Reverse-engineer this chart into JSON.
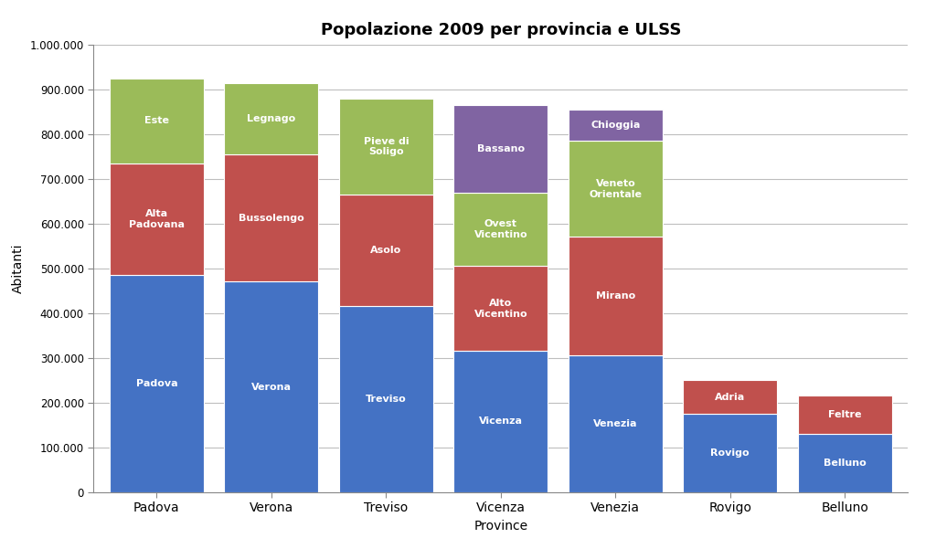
{
  "title": "Popolazione 2009 per provincia e ULSS",
  "xlabel": "Province",
  "ylabel": "Abitanti",
  "provinces": [
    "Padova",
    "Verona",
    "Treviso",
    "Vicenza",
    "Venezia",
    "Rovigo",
    "Belluno"
  ],
  "segments": [
    {
      "province": "Padova",
      "bars": [
        {
          "label": "Padova",
          "value": 485000,
          "color": "#4472C4"
        },
        {
          "label": "Alta\nPadovana",
          "value": 250000,
          "color": "#C0504D"
        },
        {
          "label": "Este",
          "value": 190000,
          "color": "#9BBB59"
        }
      ]
    },
    {
      "province": "Verona",
      "bars": [
        {
          "label": "Verona",
          "value": 470000,
          "color": "#4472C4"
        },
        {
          "label": "Bussolengo",
          "value": 285000,
          "color": "#C0504D"
        },
        {
          "label": "Legnago",
          "value": 160000,
          "color": "#9BBB59"
        }
      ]
    },
    {
      "province": "Treviso",
      "bars": [
        {
          "label": "Treviso",
          "value": 415000,
          "color": "#4472C4"
        },
        {
          "label": "Asolo",
          "value": 250000,
          "color": "#C0504D"
        },
        {
          "label": "Pieve di\nSoligo",
          "value": 215000,
          "color": "#9BBB59"
        }
      ]
    },
    {
      "province": "Vicenza",
      "bars": [
        {
          "label": "Vicenza",
          "value": 315000,
          "color": "#4472C4"
        },
        {
          "label": "Alto\nVicentino",
          "value": 190000,
          "color": "#C0504D"
        },
        {
          "label": "Ovest\nVicentino",
          "value": 165000,
          "color": "#9BBB59"
        },
        {
          "label": "Bassano",
          "value": 195000,
          "color": "#8064A2"
        }
      ]
    },
    {
      "province": "Venezia",
      "bars": [
        {
          "label": "Venezia",
          "value": 305000,
          "color": "#4472C4"
        },
        {
          "label": "Mirano",
          "value": 265000,
          "color": "#C0504D"
        },
        {
          "label": "Veneto\nOrientale",
          "value": 215000,
          "color": "#9BBB59"
        },
        {
          "label": "Chioggia",
          "value": 70000,
          "color": "#8064A2"
        }
      ]
    },
    {
      "province": "Rovigo",
      "bars": [
        {
          "label": "Rovigo",
          "value": 175000,
          "color": "#4472C4"
        },
        {
          "label": "Adria",
          "value": 75000,
          "color": "#C0504D"
        }
      ]
    },
    {
      "province": "Belluno",
      "bars": [
        {
          "label": "Belluno",
          "value": 130000,
          "color": "#4472C4"
        },
        {
          "label": "Feltre",
          "value": 85000,
          "color": "#C0504D"
        }
      ]
    }
  ],
  "ylim": [
    0,
    1000000
  ],
  "yticks": [
    0,
    100000,
    200000,
    300000,
    400000,
    500000,
    600000,
    700000,
    800000,
    900000,
    1000000
  ],
  "ytick_labels": [
    "0",
    "100.000",
    "200.000",
    "300.000",
    "400.000",
    "500.000",
    "600.000",
    "700.000",
    "800.000",
    "900.000",
    "1.000.000"
  ],
  "background_color": "#FFFFFF",
  "plot_bg_color": "#FFFFFF",
  "grid_color": "#BEBEBE",
  "bar_width": 0.82,
  "title_fontsize": 13,
  "label_fontsize": 8,
  "axis_label_fontsize": 10
}
